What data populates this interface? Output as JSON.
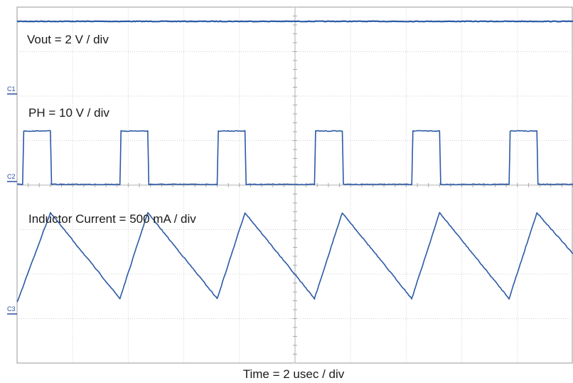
{
  "chart_data": {
    "type": "line",
    "title": "",
    "xlabel": "Time = 2 usec / div",
    "ylabel": "",
    "grid": true,
    "divisions": {
      "x": 10,
      "y": 8
    },
    "xlim": [
      0,
      10
    ],
    "trace_color": "#2b59a6",
    "channel_markers": [
      "C1",
      "C2",
      "C3"
    ],
    "series": [
      {
        "name": "Vout = 2 V / div",
        "marker": "C1",
        "x": [
          0,
          10
        ],
        "y": [
          1.55,
          1.55
        ]
      },
      {
        "name": "PH = 10 V / div",
        "marker": "C2",
        "x": [
          0.0,
          0.1,
          0.12,
          0.6,
          0.62,
          1.85,
          1.87,
          2.35,
          2.37,
          3.6,
          3.62,
          4.1,
          4.12,
          5.35,
          5.37,
          5.85,
          5.87,
          7.1,
          7.12,
          7.6,
          7.62,
          8.85,
          8.87,
          9.35,
          9.37,
          10.0
        ],
        "y": [
          0,
          0,
          1.0,
          1.0,
          0,
          0,
          1.0,
          1.0,
          0,
          0,
          1.0,
          1.0,
          0,
          0,
          1.0,
          1.0,
          0,
          0,
          1.0,
          1.0,
          0,
          0,
          1.0,
          1.0,
          0,
          0
        ]
      },
      {
        "name": "Inductor Current = 500 mA / div",
        "marker": "C3",
        "x": [
          0.0,
          0.6,
          1.85,
          2.35,
          3.6,
          4.1,
          5.35,
          5.85,
          7.1,
          7.6,
          8.85,
          9.35,
          10.0
        ],
        "y": [
          0.05,
          1.25,
          0.1,
          1.25,
          0.1,
          1.25,
          0.1,
          1.25,
          0.1,
          1.25,
          0.1,
          1.25,
          0.7
        ]
      }
    ]
  }
}
